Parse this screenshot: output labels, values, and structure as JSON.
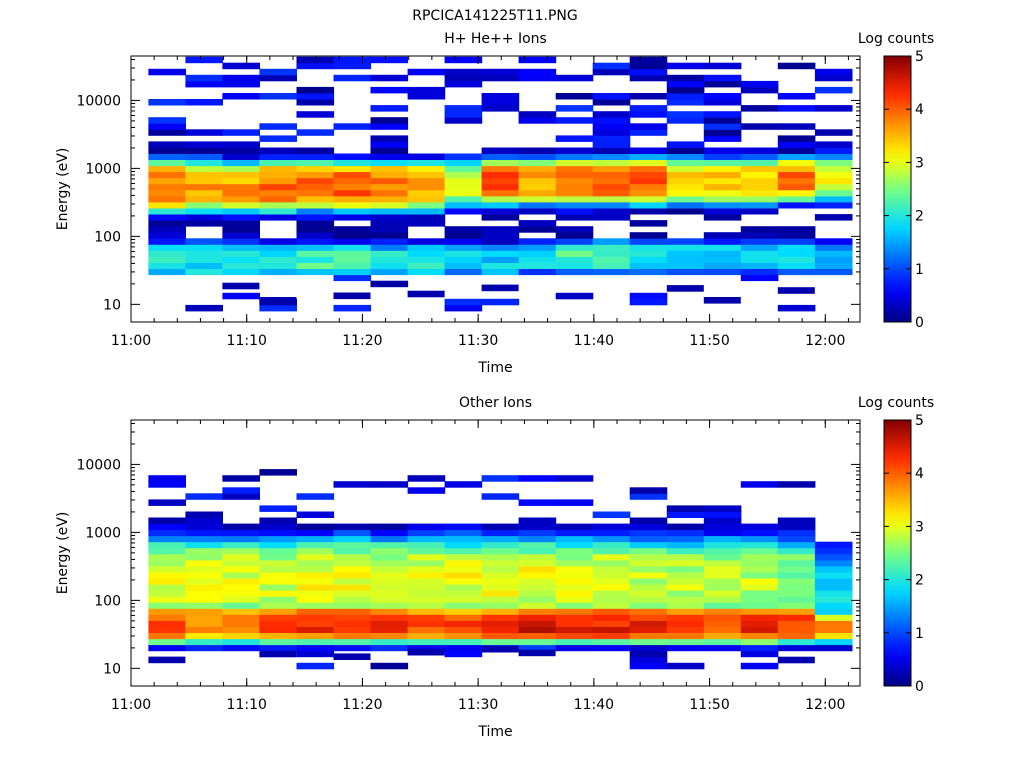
{
  "figure_title": "RPCICA141225T11.PNG",
  "colorbar": {
    "label": "Log counts",
    "ticks": [
      "0",
      "1",
      "2",
      "3",
      "4",
      "5"
    ]
  },
  "chart_data": [
    {
      "type": "heatmap",
      "title": "H+ He++ Ions",
      "xlabel": "Time",
      "ylabel": "Energy (eV)",
      "x_ticks": [
        "11:00",
        "11:10",
        "11:20",
        "11:30",
        "11:40",
        "11:50",
        "12:00"
      ],
      "y_ticks": [
        "10",
        "100",
        "1000",
        "10000"
      ],
      "y_scale": "log",
      "ylim": [
        5.5,
        45000
      ],
      "xlim": [
        "11:00",
        "12:03"
      ],
      "colorbar_range": [
        0,
        5
      ],
      "time_bins": 19,
      "time_start": "11:01:30",
      "time_step_minutes": 3.2,
      "summary": "Main band near 300-1500 eV (log counts ~3-4), secondary band 30-80 eV (~1.5-2.5), sparse counts above 2000 eV",
      "columns": [
        {
          "t": "11:01",
          "peaks": [
            {
              "e": 550,
              "v": 3.8,
              "w": 0.35
            },
            {
              "e": 45,
              "v": 2.0,
              "w": 0.25
            }
          ]
        },
        {
          "t": "11:04",
          "peaks": [
            {
              "e": 550,
              "v": 3.7,
              "w": 0.33
            },
            {
              "e": 45,
              "v": 1.9,
              "w": 0.25
            }
          ]
        },
        {
          "t": "11:08",
          "peaks": [
            {
              "e": 550,
              "v": 3.6,
              "w": 0.32
            },
            {
              "e": 45,
              "v": 1.9,
              "w": 0.25
            }
          ]
        },
        {
          "t": "11:11",
          "peaks": [
            {
              "e": 550,
              "v": 3.9,
              "w": 0.33
            },
            {
              "e": 45,
              "v": 2.1,
              "w": 0.22
            }
          ]
        },
        {
          "t": "11:14",
          "peaks": [
            {
              "e": 560,
              "v": 4.0,
              "w": 0.32
            },
            {
              "e": 45,
              "v": 2.2,
              "w": 0.22
            }
          ]
        },
        {
          "t": "11:17",
          "peaks": [
            {
              "e": 560,
              "v": 4.0,
              "w": 0.32
            },
            {
              "e": 45,
              "v": 2.1,
              "w": 0.22
            }
          ]
        },
        {
          "t": "11:21",
          "peaks": [
            {
              "e": 550,
              "v": 3.9,
              "w": 0.32
            },
            {
              "e": 45,
              "v": 2.0,
              "w": 0.22
            }
          ]
        },
        {
          "t": "11:24",
          "peaks": [
            {
              "e": 560,
              "v": 3.5,
              "w": 0.32
            },
            {
              "e": 45,
              "v": 2.0,
              "w": 0.22
            }
          ]
        },
        {
          "t": "11:27",
          "peaks": [
            {
              "e": 600,
              "v": 3.0,
              "w": 0.3
            },
            {
              "e": 45,
              "v": 1.7,
              "w": 0.22
            }
          ]
        },
        {
          "t": "11:30",
          "peaks": [
            {
              "e": 650,
              "v": 4.0,
              "w": 0.3
            },
            {
              "e": 45,
              "v": 1.7,
              "w": 0.22
            }
          ]
        },
        {
          "t": "11:34",
          "peaks": [
            {
              "e": 650,
              "v": 3.6,
              "w": 0.3
            },
            {
              "e": 50,
              "v": 1.8,
              "w": 0.22
            }
          ]
        },
        {
          "t": "11:37",
          "peaks": [
            {
              "e": 650,
              "v": 4.0,
              "w": 0.3
            },
            {
              "e": 50,
              "v": 2.2,
              "w": 0.22
            }
          ]
        },
        {
          "t": "11:40",
          "peaks": [
            {
              "e": 650,
              "v": 4.0,
              "w": 0.3
            },
            {
              "e": 50,
              "v": 2.1,
              "w": 0.22
            }
          ]
        },
        {
          "t": "11:43",
          "peaks": [
            {
              "e": 650,
              "v": 4.0,
              "w": 0.3
            },
            {
              "e": 50,
              "v": 2.0,
              "w": 0.22
            }
          ]
        },
        {
          "t": "11:47",
          "peaks": [
            {
              "e": 650,
              "v": 3.4,
              "w": 0.3
            },
            {
              "e": 50,
              "v": 1.9,
              "w": 0.22
            }
          ]
        },
        {
          "t": "11:50",
          "peaks": [
            {
              "e": 650,
              "v": 3.3,
              "w": 0.3
            },
            {
              "e": 50,
              "v": 1.8,
              "w": 0.22
            }
          ]
        },
        {
          "t": "11:53",
          "peaks": [
            {
              "e": 650,
              "v": 3.4,
              "w": 0.3
            },
            {
              "e": 50,
              "v": 1.8,
              "w": 0.22
            }
          ]
        },
        {
          "t": "11:56",
          "peaks": [
            {
              "e": 700,
              "v": 3.9,
              "w": 0.28
            },
            {
              "e": 50,
              "v": 1.8,
              "w": 0.22
            }
          ]
        },
        {
          "t": "12:00",
          "peaks": [
            {
              "e": 700,
              "v": 3.0,
              "w": 0.3
            },
            {
              "e": 50,
              "v": 1.5,
              "w": 0.22
            }
          ]
        }
      ]
    },
    {
      "type": "heatmap",
      "title": "Other Ions",
      "xlabel": "Time",
      "ylabel": "Energy (eV)",
      "x_ticks": [
        "11:00",
        "11:10",
        "11:20",
        "11:30",
        "11:40",
        "11:50",
        "12:00"
      ],
      "y_ticks": [
        "10",
        "100",
        "1000",
        "10000"
      ],
      "y_scale": "log",
      "ylim": [
        5.5,
        45000
      ],
      "xlim": [
        "11:00",
        "12:03"
      ],
      "colorbar_range": [
        0,
        5
      ],
      "time_bins": 19,
      "time_start": "11:01:30",
      "time_step_minutes": 3.2,
      "summary": "Broad distribution 25-1000 eV (log counts ~2-3), strongest band near 40-50 eV (~4), sparse counts up to ~9000 eV",
      "columns": [
        {
          "t": "11:01",
          "peaks": [
            {
              "e": 45,
              "v": 4.0,
              "w": 0.25
            },
            {
              "e": 200,
              "v": 3.0,
              "w": 0.55
            }
          ]
        },
        {
          "t": "11:04",
          "peaks": [
            {
              "e": 45,
              "v": 3.9,
              "w": 0.25
            },
            {
              "e": 200,
              "v": 2.9,
              "w": 0.55
            }
          ]
        },
        {
          "t": "11:08",
          "peaks": [
            {
              "e": 45,
              "v": 4.0,
              "w": 0.25
            },
            {
              "e": 200,
              "v": 2.9,
              "w": 0.55
            }
          ]
        },
        {
          "t": "11:11",
          "peaks": [
            {
              "e": 45,
              "v": 4.2,
              "w": 0.25
            },
            {
              "e": 200,
              "v": 2.9,
              "w": 0.55
            }
          ]
        },
        {
          "t": "11:14",
          "peaks": [
            {
              "e": 45,
              "v": 4.3,
              "w": 0.25
            },
            {
              "e": 200,
              "v": 3.0,
              "w": 0.55
            }
          ]
        },
        {
          "t": "11:17",
          "peaks": [
            {
              "e": 45,
              "v": 4.3,
              "w": 0.25
            },
            {
              "e": 200,
              "v": 3.1,
              "w": 0.55
            }
          ]
        },
        {
          "t": "11:21",
          "peaks": [
            {
              "e": 45,
              "v": 4.2,
              "w": 0.25
            },
            {
              "e": 200,
              "v": 3.0,
              "w": 0.55
            }
          ]
        },
        {
          "t": "11:24",
          "peaks": [
            {
              "e": 45,
              "v": 4.2,
              "w": 0.25
            },
            {
              "e": 200,
              "v": 3.0,
              "w": 0.55
            }
          ]
        },
        {
          "t": "11:27",
          "peaks": [
            {
              "e": 45,
              "v": 4.2,
              "w": 0.25
            },
            {
              "e": 200,
              "v": 3.0,
              "w": 0.55
            }
          ]
        },
        {
          "t": "11:30",
          "peaks": [
            {
              "e": 45,
              "v": 4.3,
              "w": 0.25
            },
            {
              "e": 200,
              "v": 3.0,
              "w": 0.55
            }
          ]
        },
        {
          "t": "11:34",
          "peaks": [
            {
              "e": 45,
              "v": 4.5,
              "w": 0.25
            },
            {
              "e": 200,
              "v": 3.0,
              "w": 0.55
            }
          ]
        },
        {
          "t": "11:37",
          "peaks": [
            {
              "e": 45,
              "v": 4.5,
              "w": 0.25
            },
            {
              "e": 200,
              "v": 3.0,
              "w": 0.55
            }
          ]
        },
        {
          "t": "11:40",
          "peaks": [
            {
              "e": 45,
              "v": 4.4,
              "w": 0.25
            },
            {
              "e": 200,
              "v": 2.9,
              "w": 0.55
            }
          ]
        },
        {
          "t": "11:43",
          "peaks": [
            {
              "e": 45,
              "v": 4.3,
              "w": 0.25
            },
            {
              "e": 200,
              "v": 2.8,
              "w": 0.55
            }
          ]
        },
        {
          "t": "11:47",
          "peaks": [
            {
              "e": 45,
              "v": 4.2,
              "w": 0.25
            },
            {
              "e": 200,
              "v": 2.8,
              "w": 0.55
            }
          ]
        },
        {
          "t": "11:50",
          "peaks": [
            {
              "e": 45,
              "v": 4.1,
              "w": 0.25
            },
            {
              "e": 200,
              "v": 2.8,
              "w": 0.55
            }
          ]
        },
        {
          "t": "11:53",
          "peaks": [
            {
              "e": 45,
              "v": 4.3,
              "w": 0.25
            },
            {
              "e": 200,
              "v": 2.8,
              "w": 0.55
            }
          ]
        },
        {
          "t": "11:56",
          "peaks": [
            {
              "e": 45,
              "v": 4.2,
              "w": 0.25
            },
            {
              "e": 200,
              "v": 2.6,
              "w": 0.55
            }
          ]
        },
        {
          "t": "12:00",
          "peaks": [
            {
              "e": 40,
              "v": 3.6,
              "w": 0.2
            },
            {
              "e": 150,
              "v": 1.9,
              "w": 0.5
            }
          ]
        }
      ]
    }
  ]
}
